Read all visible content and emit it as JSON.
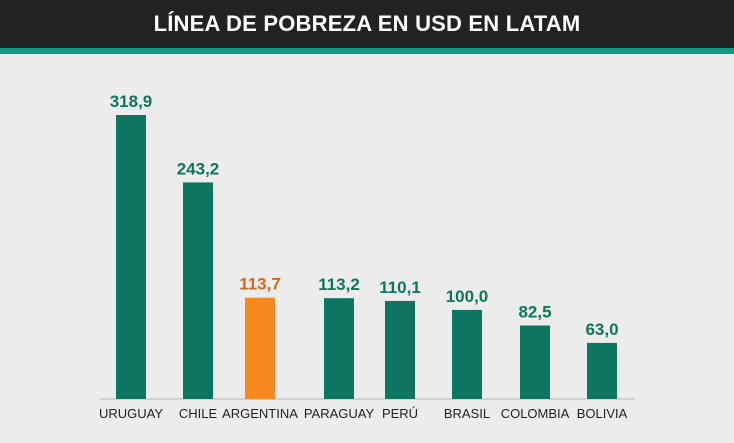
{
  "colors": {
    "background": "#ececec",
    "header": "#222222",
    "accent": "#139a86",
    "bar_default": "#0e7560",
    "bar_highlight": "#f7891f",
    "label_default": "#0e7560",
    "label_highlight": "#d06a21",
    "axis": "#b8b8b8",
    "category_text": "#222222"
  },
  "header": {
    "title": "LÍNEA DE POBREZA EN USD EN LATAM"
  },
  "chart_data": {
    "type": "bar",
    "title": "LÍNEA DE POBREZA EN USD EN LATAM",
    "xlabel": "",
    "ylabel": "",
    "ylim": [
      0,
      318.9
    ],
    "grid": false,
    "legend": false,
    "categories": [
      "URUGUAY",
      "CHILE",
      "ARGENTINA",
      "PARAGUAY",
      "PERÚ",
      "BRASIL",
      "COLOMBIA",
      "BOLIVIA"
    ],
    "values": [
      318.9,
      243.2,
      113.7,
      113.2,
      110.1,
      100.0,
      82.5,
      63.0
    ],
    "value_labels": [
      "318,9",
      "243,2",
      "113,7",
      "113,2",
      "110,1",
      "100,0",
      "82,5",
      "63,0"
    ],
    "highlight_index": 2
  }
}
